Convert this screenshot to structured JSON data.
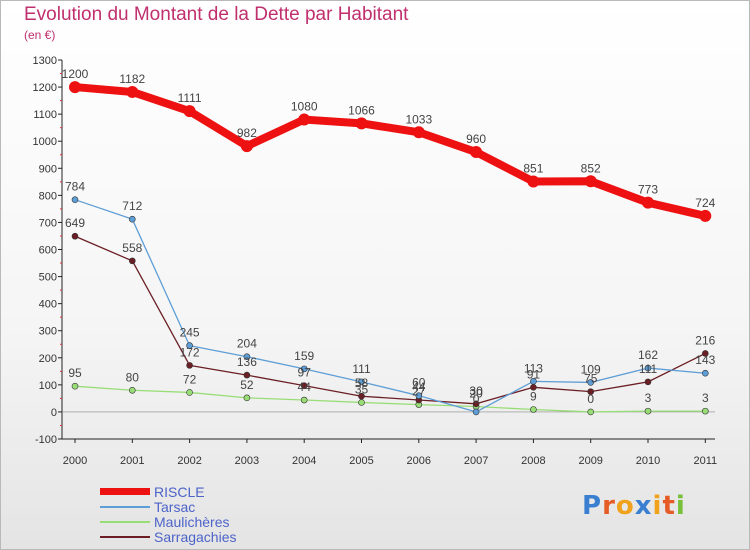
{
  "header": {
    "title": "Evolution du Montant de la Dette par Habitant",
    "subtitle": "(en €)"
  },
  "chart_data": {
    "type": "line",
    "x": [
      "2000",
      "2001",
      "2002",
      "2003",
      "2004",
      "2005",
      "2006",
      "2007",
      "2008",
      "2009",
      "2010",
      "2011"
    ],
    "ylim": [
      -100,
      1300
    ],
    "yticks": [
      "-100",
      "0",
      "100",
      "200",
      "300",
      "400",
      "500",
      "600",
      "700",
      "800",
      "900",
      "1000",
      "1100",
      "1200",
      "1300"
    ],
    "grid": false,
    "legend_position": "bottom-left",
    "series": [
      {
        "name": "RISCLE",
        "color": "#ee1111",
        "values": [
          1200,
          1182,
          1111,
          982,
          1080,
          1066,
          1033,
          960,
          851,
          852,
          773,
          724
        ],
        "labels": [
          "1200",
          "1182",
          "1111",
          "982",
          "1080",
          "1066",
          "1033",
          "960",
          "851",
          "852",
          "773",
          "724"
        ]
      },
      {
        "name": "Tarsac",
        "color": "#5e9ed6",
        "values": [
          784,
          712,
          245,
          204,
          159,
          111,
          60,
          0,
          113,
          109,
          162,
          143
        ],
        "labels": [
          "784",
          "712",
          "245",
          "204",
          "159",
          "111",
          "60",
          "0",
          "113",
          "109",
          "162",
          "143"
        ]
      },
      {
        "name": "Maulichères",
        "color": "#99dd77",
        "values": [
          95,
          80,
          72,
          52,
          44,
          35,
          27,
          20,
          9,
          0,
          3,
          3
        ],
        "labels": [
          "95",
          "80",
          "72",
          "52",
          "44",
          "35",
          "27",
          "20",
          "9",
          "0",
          "3",
          "3"
        ]
      },
      {
        "name": "Sarragachies",
        "color": "#6b1f24",
        "values": [
          649,
          558,
          172,
          136,
          97,
          58,
          44,
          30,
          91,
          75,
          111,
          216
        ],
        "labels": [
          "649",
          "558",
          "172",
          "136",
          "97",
          "58",
          "44",
          "30",
          "91",
          "75",
          "111",
          "216"
        ]
      }
    ]
  },
  "legend": [
    {
      "label": "RISCLE",
      "color": "#ee1111"
    },
    {
      "label": "Tarsac",
      "color": "#5e9ed6"
    },
    {
      "label": "Maulichères",
      "color": "#99dd77"
    },
    {
      "label": "Sarragachies",
      "color": "#6b1f24"
    }
  ],
  "logo": {
    "letters": [
      "P",
      "r",
      "o",
      "x",
      "i",
      "t",
      "i"
    ],
    "colors": [
      "#3a7fd0",
      "#e65c26",
      "#f0a21c",
      "#3a7fd0",
      "#f0a21c",
      "#e65c26",
      "#78c03a"
    ]
  }
}
